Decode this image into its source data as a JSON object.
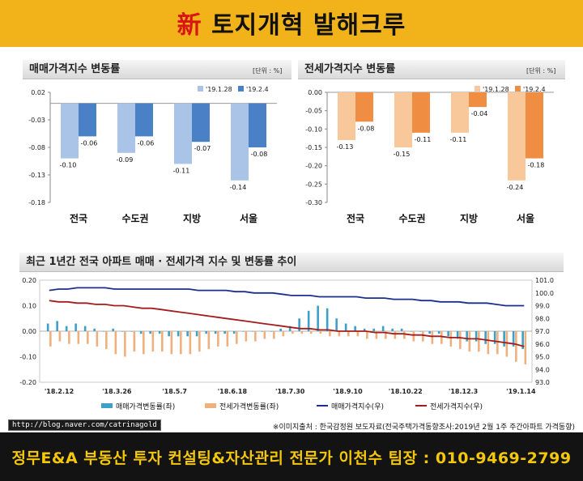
{
  "header": {
    "title_accent": "新",
    "title_rest": " 토지개혁 발해크루"
  },
  "chart_data": [
    {
      "type": "bar",
      "title": "매매가격지수 변동률",
      "unit": "[단위 : %]",
      "categories": [
        "전국",
        "수도권",
        "지방",
        "서울"
      ],
      "series": [
        {
          "name": "'19.1.28",
          "values": [
            -0.1,
            -0.09,
            -0.11,
            -0.14
          ]
        },
        {
          "name": "'19.2.4",
          "values": [
            -0.06,
            -0.06,
            -0.07,
            -0.08
          ]
        }
      ],
      "ylim": [
        -0.18,
        0.02
      ],
      "yticks": [
        "0.02",
        "-0.03",
        "-0.08",
        "-0.13",
        "-0.18"
      ],
      "labels": [
        [
          "-0.10",
          "-0.09",
          "-0.11",
          "-0.14"
        ],
        [
          "-0.06",
          "-0.06",
          "-0.07",
          "-0.08"
        ]
      ],
      "colors": [
        "#a9c4e6",
        "#4a80c6"
      ]
    },
    {
      "type": "bar",
      "title": "전세가격지수 변동률",
      "unit": "[단위 : %]",
      "categories": [
        "전국",
        "수도권",
        "지방",
        "서울"
      ],
      "series": [
        {
          "name": "'19.1.28",
          "values": [
            -0.13,
            -0.15,
            -0.11,
            -0.24
          ]
        },
        {
          "name": "'19.2.4",
          "values": [
            -0.08,
            -0.11,
            -0.04,
            -0.18
          ]
        }
      ],
      "ylim": [
        -0.3,
        0.0
      ],
      "yticks": [
        "0.00",
        "-0.05",
        "-0.10",
        "-0.15",
        "-0.20",
        "-0.25",
        "-0.30"
      ],
      "labels": [
        [
          "-0.13",
          "-0.15",
          "-0.11",
          "-0.24"
        ],
        [
          "-0.08",
          "-0.11",
          "-0.04",
          "-0.18"
        ]
      ],
      "colors": [
        "#f8c79a",
        "#ef8e42"
      ]
    },
    {
      "type": "bar+line",
      "title": "최근 1년간 전국 아파트 매매 · 전세가격 지수 및 변동률 추이",
      "x_labels": [
        "'18.2.12",
        "'18.3.26",
        "'18.5.7",
        "'18.6.18",
        "'18.7.30",
        "'18.9.10",
        "'18.10.22",
        "'18.12.3",
        "'19.1.14"
      ],
      "ylim_left": [
        -0.2,
        0.2
      ],
      "yticks_left": [
        "0.20",
        "0.10",
        "0.00",
        "-0.10",
        "-0.20"
      ],
      "ylim_right": [
        93.0,
        101.0
      ],
      "yticks_right": [
        "101.0",
        "100.0",
        "99.0",
        "98.0",
        "97.0",
        "96.0",
        "95.0",
        "94.0",
        "93.0"
      ],
      "series": [
        {
          "name": "매매가격변동률(좌)",
          "type": "bar",
          "axis": "left",
          "color": "#3ea0c9",
          "values": [
            0.03,
            0.04,
            0.02,
            0.03,
            0.02,
            0.01,
            0.0,
            0.01,
            0.0,
            0.0,
            -0.01,
            -0.01,
            -0.01,
            -0.02,
            -0.02,
            -0.02,
            -0.02,
            -0.01,
            -0.01,
            -0.01,
            -0.01,
            0.0,
            0.0,
            0.0,
            0.0,
            0.01,
            0.02,
            0.05,
            0.08,
            0.1,
            0.09,
            0.05,
            0.03,
            0.02,
            0.01,
            0.01,
            0.02,
            0.01,
            0.01,
            0.0,
            0.0,
            -0.01,
            -0.01,
            -0.02,
            -0.03,
            -0.04,
            -0.04,
            -0.05,
            -0.05,
            -0.06,
            -0.06,
            -0.07
          ]
        },
        {
          "name": "전세가격변동률(좌)",
          "type": "bar",
          "axis": "left",
          "color": "#f0b07d",
          "values": [
            -0.06,
            -0.04,
            -0.05,
            -0.05,
            -0.05,
            -0.06,
            -0.07,
            -0.09,
            -0.1,
            -0.08,
            -0.09,
            -0.08,
            -0.08,
            -0.09,
            -0.09,
            -0.09,
            -0.08,
            -0.07,
            -0.06,
            -0.06,
            -0.05,
            -0.04,
            -0.04,
            -0.03,
            -0.03,
            -0.02,
            -0.01,
            -0.01,
            -0.01,
            -0.01,
            -0.02,
            -0.02,
            -0.02,
            -0.02,
            -0.03,
            -0.03,
            -0.03,
            -0.03,
            -0.03,
            -0.04,
            -0.04,
            -0.05,
            -0.05,
            -0.06,
            -0.07,
            -0.08,
            -0.08,
            -0.09,
            -0.09,
            -0.1,
            -0.12,
            -0.13
          ]
        },
        {
          "name": "매매가격지수(우)",
          "type": "line",
          "axis": "right",
          "color": "#1a2f8f",
          "values": [
            100.2,
            100.3,
            100.3,
            100.4,
            100.4,
            100.4,
            100.4,
            100.3,
            100.3,
            100.3,
            100.3,
            100.3,
            100.3,
            100.3,
            100.3,
            100.3,
            100.2,
            100.2,
            100.2,
            100.2,
            100.1,
            100.1,
            100.0,
            100.0,
            100.0,
            99.9,
            99.8,
            99.8,
            99.8,
            99.7,
            99.7,
            99.7,
            99.7,
            99.7,
            99.6,
            99.6,
            99.6,
            99.5,
            99.5,
            99.5,
            99.4,
            99.4,
            99.3,
            99.3,
            99.3,
            99.2,
            99.2,
            99.2,
            99.1,
            99.0,
            99.0,
            99.0
          ]
        },
        {
          "name": "전세가격지수(우)",
          "type": "line",
          "axis": "right",
          "color": "#a51c1c",
          "values": [
            99.4,
            99.3,
            99.3,
            99.2,
            99.2,
            99.1,
            99.1,
            99.0,
            99.0,
            98.9,
            98.8,
            98.8,
            98.7,
            98.6,
            98.5,
            98.4,
            98.3,
            98.2,
            98.1,
            98.0,
            97.9,
            97.8,
            97.7,
            97.6,
            97.5,
            97.4,
            97.3,
            97.2,
            97.2,
            97.1,
            97.1,
            97.0,
            97.0,
            97.0,
            97.0,
            96.9,
            96.9,
            96.8,
            96.8,
            96.7,
            96.7,
            96.6,
            96.6,
            96.5,
            96.5,
            96.4,
            96.4,
            96.3,
            96.2,
            96.1,
            96.0,
            95.8
          ]
        }
      ]
    }
  ],
  "footer": {
    "url": "http://blog.naver.com/catrinagold",
    "source": "※이미지출처 : 한국감정원 보도자료(전국주택가격동향조사:2019년 2월 1주 주간아파트 가격동향)",
    "contact": "정무E&A 부동산 투자 컨설팅&자산관리 전문가 이천수 팀장 : 010-9469-2799"
  }
}
